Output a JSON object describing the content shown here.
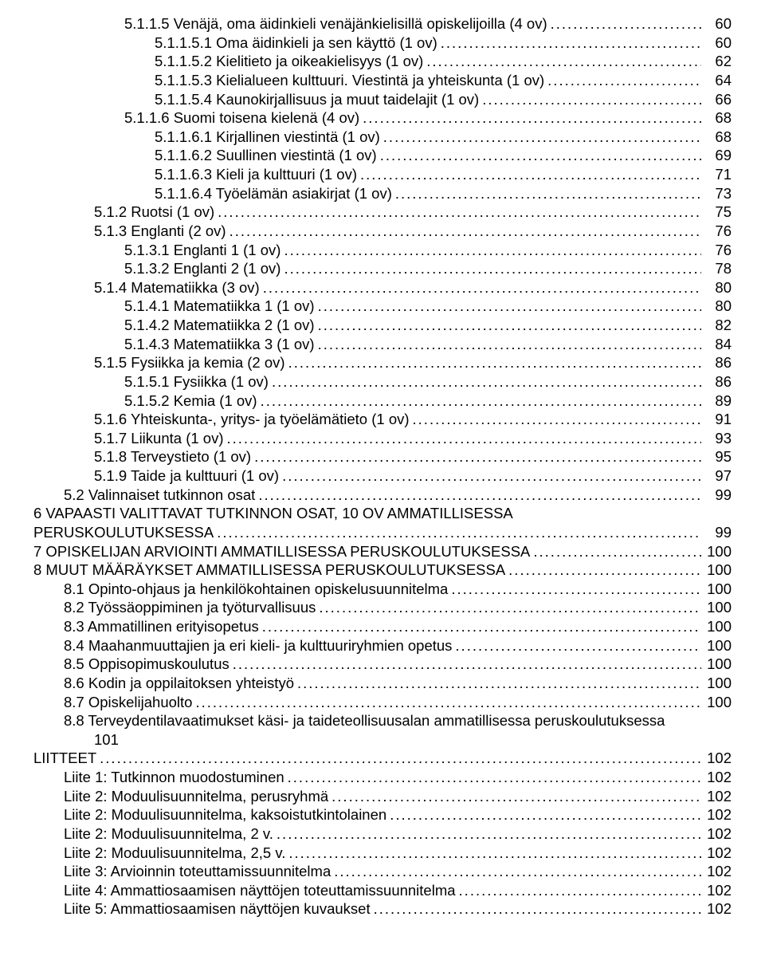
{
  "toc": [
    {
      "indent": 3,
      "title": "5.1.1.5   Venäjä, oma äidinkieli venäjänkielisillä opiskelijoilla (4 ov)",
      "page": "60"
    },
    {
      "indent": 4,
      "title": "5.1.1.5.1   Oma äidinkieli ja sen käyttö (1 ov)",
      "page": "60"
    },
    {
      "indent": 4,
      "title": "5.1.1.5.2   Kielitieto ja oikeakielisyys (1 ov)",
      "page": "62"
    },
    {
      "indent": 4,
      "title": "5.1.1.5.3   Kielialueen kulttuuri. Viestintä ja yhteiskunta (1 ov)",
      "page": "64"
    },
    {
      "indent": 4,
      "title": "5.1.1.5.4   Kaunokirjallisuus ja muut taidelajit (1 ov)",
      "page": "66"
    },
    {
      "indent": 3,
      "title": "5.1.1.6   Suomi toisena kielenä (4 ov)",
      "page": "68"
    },
    {
      "indent": 4,
      "title": "5.1.1.6.1   Kirjallinen viestintä (1 ov)",
      "page": "68"
    },
    {
      "indent": 4,
      "title": "5.1.1.6.2   Suullinen viestintä (1 ov)",
      "page": "69"
    },
    {
      "indent": 4,
      "title": "5.1.1.6.3   Kieli ja kulttuuri (1 ov)",
      "page": "71"
    },
    {
      "indent": 4,
      "title": "5.1.1.6.4   Työelämän asiakirjat (1 ov)",
      "page": "73"
    },
    {
      "indent": 2,
      "title": "5.1.2     Ruotsi (1 ov)",
      "page": "75"
    },
    {
      "indent": 2,
      "title": "5.1.3     Englanti (2 ov)",
      "page": "76"
    },
    {
      "indent": 3,
      "title": "5.1.3.1   Englanti 1 (1 ov)",
      "page": "76"
    },
    {
      "indent": 3,
      "title": "5.1.3.2   Englanti 2 (1 ov)",
      "page": "78"
    },
    {
      "indent": 2,
      "title": "5.1.4     Matematiikka (3 ov)",
      "page": "80"
    },
    {
      "indent": 3,
      "title": "5.1.4.1   Matematiikka 1 (1 ov)",
      "page": "80"
    },
    {
      "indent": 3,
      "title": "5.1.4.2   Matematiikka 2 (1 ov)",
      "page": "82"
    },
    {
      "indent": 3,
      "title": "5.1.4.3   Matematiikka 3 (1 ov)",
      "page": "84"
    },
    {
      "indent": 2,
      "title": "5.1.5     Fysiikka ja kemia (2 ov)",
      "page": "86"
    },
    {
      "indent": 3,
      "title": "5.1.5.1   Fysiikka (1 ov)",
      "page": "86"
    },
    {
      "indent": 3,
      "title": "5.1.5.2   Kemia (1 ov)",
      "page": "89"
    },
    {
      "indent": 2,
      "title": "5.1.6     Yhteiskunta-, yritys- ja työelämätieto (1 ov)",
      "page": "91"
    },
    {
      "indent": 2,
      "title": "5.1.7     Liikunta (1 ov)",
      "page": "93"
    },
    {
      "indent": 2,
      "title": "5.1.8     Terveystieto (1 ov)",
      "page": "95"
    },
    {
      "indent": 2,
      "title": "5.1.9     Taide ja kulttuuri (1 ov)",
      "page": "97"
    },
    {
      "indent": 1,
      "title": "5.2    Valinnaiset tutkinnon osat",
      "page": "99"
    },
    {
      "indent": 0,
      "title": "6    VAPAASTI VALITTAVAT TUTKINNON OSAT, 10 OV AMMATILLISESSA",
      "wrap": true
    },
    {
      "indent": 0,
      "title": "PERUSKOULUTUKSESSA",
      "page": "99"
    },
    {
      "indent": 0,
      "title": "7    OPISKELIJAN ARVIOINTI AMMATILLISESSA PERUSKOULUTUKSESSA",
      "page": "100"
    },
    {
      "indent": 0,
      "title": "8    MUUT MÄÄRÄYKSET AMMATILLISESSA PERUSKOULUTUKSESSA",
      "page": "100"
    },
    {
      "indent": 1,
      "title": "8.1    Opinto-ohjaus ja henkilökohtainen opiskelusuunnitelma",
      "page": "100"
    },
    {
      "indent": 1,
      "title": "8.2    Työssäoppiminen ja työturvallisuus",
      "page": "100"
    },
    {
      "indent": 1,
      "title": "8.3    Ammatillinen erityisopetus",
      "page": "100"
    },
    {
      "indent": 1,
      "title": "8.4    Maahanmuuttajien ja eri kieli- ja kulttuuriryhmien opetus",
      "page": "100"
    },
    {
      "indent": 1,
      "title": "8.5    Oppisopimuskoulutus",
      "page": "100"
    },
    {
      "indent": 1,
      "title": "8.6    Kodin ja oppilaitoksen yhteistyö",
      "page": "100"
    },
    {
      "indent": 1,
      "title": "8.7    Opiskelijahuolto",
      "page": "100"
    },
    {
      "indent": 1,
      "title": "8.8    Terveydentilavaatimukset käsi- ja taideteollisuusalan ammatillisessa peruskoulutuksessa",
      "wrap": true
    },
    {
      "indent": 2,
      "title": "101",
      "plain": true
    },
    {
      "indent": 0,
      "title": "LIITTEET",
      "page": "102"
    },
    {
      "indent": 1,
      "title": "Liite 1: Tutkinnon muodostuminen",
      "page": "102"
    },
    {
      "indent": 1,
      "title": "Liite 2: Moduulisuunnitelma, perusryhmä",
      "page": "102"
    },
    {
      "indent": 1,
      "title": "Liite 2: Moduulisuunnitelma, kaksoistutkintolainen",
      "page": "102"
    },
    {
      "indent": 1,
      "title": "Liite 2: Moduulisuunnitelma, 2 v.",
      "page": "102"
    },
    {
      "indent": 1,
      "title": "Liite 2: Moduulisuunnitelma, 2,5 v.",
      "page": "102"
    },
    {
      "indent": 1,
      "title": "Liite 3: Arvioinnin toteuttamissuunnitelma",
      "page": "102"
    },
    {
      "indent": 1,
      "title": "Liite 4: Ammattiosaamisen näyttöjen toteuttamissuunnitelma",
      "page": "102"
    },
    {
      "indent": 1,
      "title": "Liite 5: Ammattiosaamisen näyttöjen kuvaukset",
      "page": "102"
    }
  ]
}
